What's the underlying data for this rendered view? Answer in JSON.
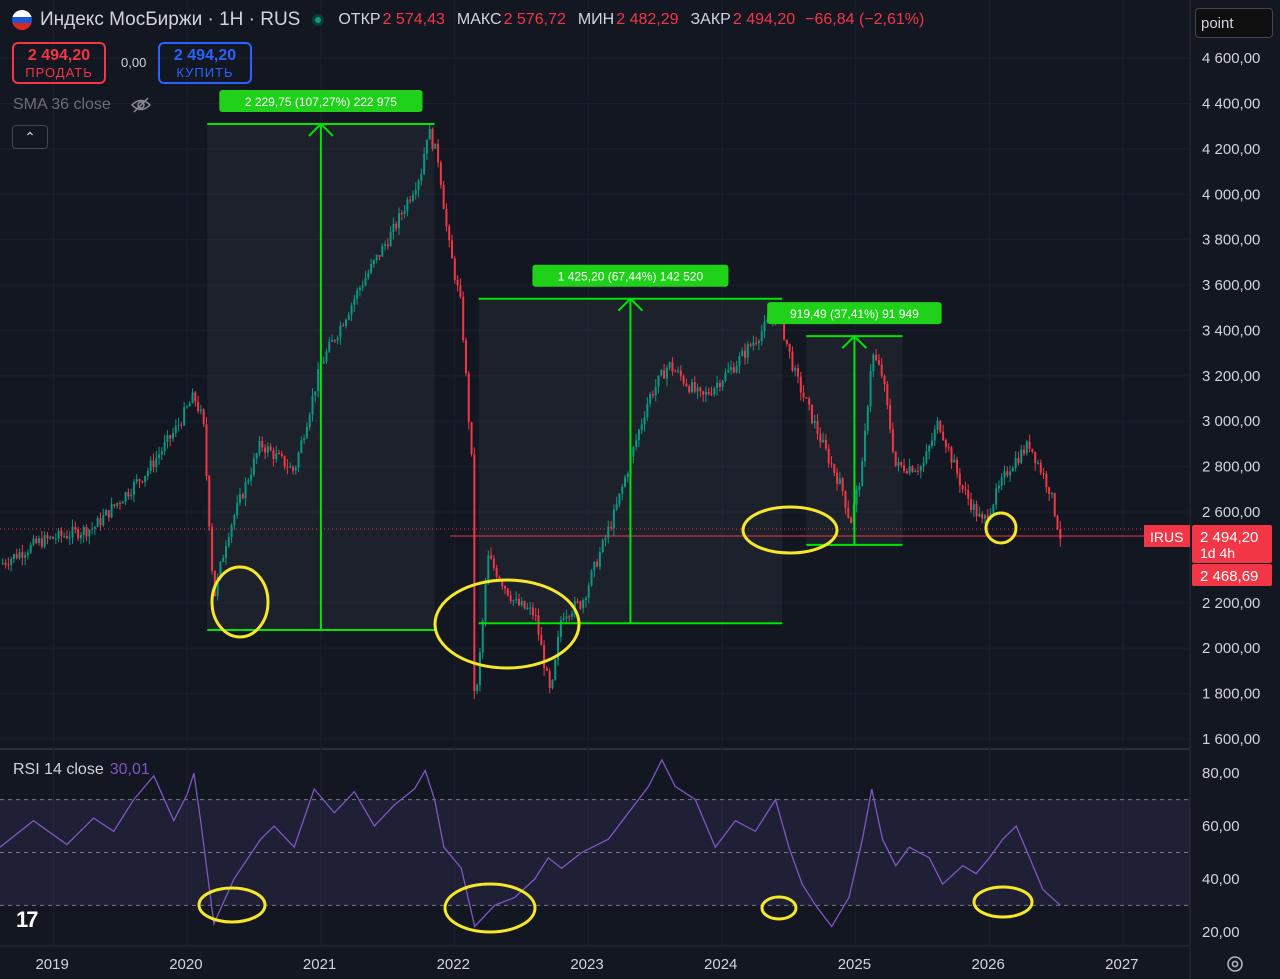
{
  "header": {
    "title": "Индекс МосБиржи · 1Н · RUS",
    "open_label": "ОТКР",
    "open": "2 574,43",
    "high_label": "МАКС",
    "high": "2 576,72",
    "low_label": "МИН",
    "low": "2 482,29",
    "close_label": "ЗАКР",
    "close": "2 494,20",
    "change": "−66,84 (−2,61%)"
  },
  "trade": {
    "sell_price": "2 494,20",
    "sell_label": "ПРОДАТЬ",
    "spread": "0,00",
    "buy_price": "2 494,20",
    "buy_label": "КУПИТЬ"
  },
  "indicator_sma": "SMA 36 close",
  "collapse_glyph": "⌃",
  "point_input": "point",
  "rsi": {
    "label": "RSI 14 close",
    "value": "30,01"
  },
  "logo_text": "17",
  "colors": {
    "up": "#089981",
    "down": "#f23645",
    "rsi": "#7e57c2",
    "measure": "#00e600",
    "annotation": "#f5e82a",
    "price_line": "#f23645"
  },
  "icons": {
    "eye": "eye-crossed-icon",
    "gear": "gear-icon",
    "flag": "russia-flag-icon"
  },
  "chart_data": [
    {
      "type": "candlestick",
      "title": "Индекс МосБиржи · 1Н · RUS",
      "x_ticks": [
        "2019",
        "2020",
        "2021",
        "2022",
        "2023",
        "2024",
        "2025",
        "2026",
        "2027"
      ],
      "y_ticks": [
        "4 600,00",
        "4 400,00",
        "4 200,00",
        "4 000,00",
        "3 800,00",
        "3 600,00",
        "3 400,00",
        "3 200,00",
        "3 000,00",
        "2 800,00",
        "2 600,00",
        "2 200,00",
        "2 000,00",
        "1 800,00",
        "1 600,00"
      ],
      "ylim": [
        1560,
        4680
      ],
      "xlim": [
        2018.6,
        2027.5
      ],
      "price_path": [
        [
          "2018.60",
          2370
        ],
        [
          "2018.90",
          2470
        ],
        [
          "2019.30",
          2530
        ],
        [
          "2019.70",
          2780
        ],
        [
          "2019.90",
          2950
        ],
        [
          "2020.05",
          3110
        ],
        [
          "2020.12",
          3000
        ],
        [
          "2020.20",
          2220
        ],
        [
          "2020.30",
          2500
        ],
        [
          "2020.55",
          2900
        ],
        [
          "2020.80",
          2780
        ],
        [
          "2021.00",
          3250
        ],
        [
          "2021.30",
          3600
        ],
        [
          "2021.55",
          3850
        ],
        [
          "2021.75",
          4100
        ],
        [
          "2021.80",
          4290
        ],
        [
          "2021.88",
          4150
        ],
        [
          "2021.95",
          3800
        ],
        [
          "2022.05",
          3500
        ],
        [
          "2022.13",
          2800
        ],
        [
          "2022.15",
          1690
        ],
        [
          "2022.25",
          2400
        ],
        [
          "2022.45",
          2200
        ],
        [
          "2022.60",
          2150
        ],
        [
          "2022.72",
          1780
        ],
        [
          "2022.80",
          2150
        ],
        [
          "2022.95",
          2200
        ],
        [
          "2023.20",
          2600
        ],
        [
          "2023.45",
          3100
        ],
        [
          "2023.60",
          3250
        ],
        [
          "2023.85",
          3100
        ],
        [
          "2024.10",
          3250
        ],
        [
          "2024.30",
          3400
        ],
        [
          "2024.42",
          3480
        ],
        [
          "2024.55",
          3200
        ],
        [
          "2024.75",
          2900
        ],
        [
          "2024.90",
          2700
        ],
        [
          "2024.96",
          2550
        ],
        [
          "2025.05",
          2800
        ],
        [
          "2025.12",
          3300
        ],
        [
          "2025.20",
          3200
        ],
        [
          "2025.30",
          2800
        ],
        [
          "2025.50",
          2800
        ],
        [
          "2025.62",
          3000
        ],
        [
          "2025.80",
          2700
        ],
        [
          "2025.95",
          2550
        ],
        [
          "2026.15",
          2800
        ],
        [
          "2026.30",
          2900
        ],
        [
          "2026.45",
          2700
        ],
        [
          "2026.53",
          2494
        ]
      ],
      "current_price": {
        "label": "IRUS",
        "value": "2 494,20",
        "countdown": "1d 4h",
        "secondary": "2 468,69"
      },
      "measurements": [
        {
          "label": "2 229,75 (107,27%) 222 975",
          "x_start": "2020.15",
          "x_end": "2021.85",
          "y_start": 2080,
          "y_end": 4310
        },
        {
          "label": "1 425,20 (67,44%) 142 520",
          "x_start": "2022.18",
          "x_end": "2024.45",
          "y_start": 2110,
          "y_end": 3540
        },
        {
          "label": "919,49 (37,41%) 91 949",
          "x_start": "2024.63",
          "x_end": "2025.35",
          "y_start": 2455,
          "y_end": 3375
        }
      ]
    },
    {
      "type": "line",
      "title": "RSI 14 close",
      "y_ticks": [
        "80,00",
        "60,00",
        "40,00",
        "20,00"
      ],
      "ylim": [
        15,
        88
      ],
      "bands": [
        30,
        50,
        70
      ],
      "rsi_path": [
        [
          "2018.60",
          52
        ],
        [
          "2018.85",
          62
        ],
        [
          "2019.10",
          53
        ],
        [
          "2019.30",
          63
        ],
        [
          "2019.45",
          58
        ],
        [
          "2019.60",
          70
        ],
        [
          "2019.75",
          79
        ],
        [
          "2019.90",
          62
        ],
        [
          "2020.00",
          72
        ],
        [
          "2020.05",
          80
        ],
        [
          "2020.10",
          62
        ],
        [
          "2020.20",
          23
        ],
        [
          "2020.35",
          40
        ],
        [
          "2020.55",
          55
        ],
        [
          "2020.65",
          60
        ],
        [
          "2020.80",
          52
        ],
        [
          "2020.95",
          74
        ],
        [
          "2021.10",
          65
        ],
        [
          "2021.25",
          73
        ],
        [
          "2021.40",
          60
        ],
        [
          "2021.55",
          68
        ],
        [
          "2021.70",
          74
        ],
        [
          "2021.78",
          81
        ],
        [
          "2021.85",
          70
        ],
        [
          "2021.92",
          52
        ],
        [
          "2022.05",
          44
        ],
        [
          "2022.15",
          22
        ],
        [
          "2022.30",
          30
        ],
        [
          "2022.45",
          33
        ],
        [
          "2022.60",
          40
        ],
        [
          "2022.70",
          48
        ],
        [
          "2022.80",
          44
        ],
        [
          "2022.95",
          50
        ],
        [
          "2023.15",
          55
        ],
        [
          "2023.30",
          65
        ],
        [
          "2023.45",
          75
        ],
        [
          "2023.55",
          85
        ],
        [
          "2023.65",
          75
        ],
        [
          "2023.80",
          70
        ],
        [
          "2023.95",
          52
        ],
        [
          "2024.10",
          62
        ],
        [
          "2024.25",
          58
        ],
        [
          "2024.40",
          70
        ],
        [
          "2024.50",
          52
        ],
        [
          "2024.60",
          38
        ],
        [
          "2024.70",
          30
        ],
        [
          "2024.82",
          22
        ],
        [
          "2024.95",
          33
        ],
        [
          "2025.05",
          55
        ],
        [
          "2025.12",
          74
        ],
        [
          "2025.20",
          55
        ],
        [
          "2025.30",
          45
        ],
        [
          "2025.40",
          52
        ],
        [
          "2025.55",
          48
        ],
        [
          "2025.65",
          38
        ],
        [
          "2025.80",
          45
        ],
        [
          "2025.90",
          42
        ],
        [
          "2026.00",
          48
        ],
        [
          "2026.10",
          55
        ],
        [
          "2026.20",
          60
        ],
        [
          "2026.30",
          48
        ],
        [
          "2026.40",
          36
        ],
        [
          "2026.53",
          30
        ]
      ]
    }
  ]
}
